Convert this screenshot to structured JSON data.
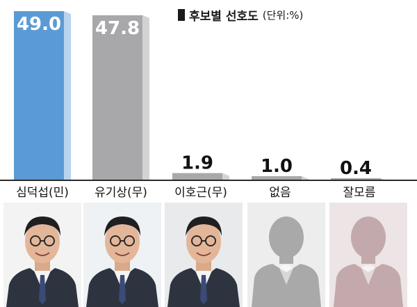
{
  "chart_data": {
    "type": "bar",
    "title": "후보별 선호도",
    "unit_label": "(단위:%)",
    "categories": [
      "심덕섭(민)",
      "유기상(무)",
      "이호근(무)",
      "없음",
      "잘모름"
    ],
    "values": [
      49.0,
      47.8,
      1.9,
      1.0,
      0.4
    ],
    "value_labels": [
      "49.0",
      "47.8",
      "1.9",
      "1.0",
      "0.4"
    ],
    "ylim": [
      0,
      49.0
    ],
    "grid": false,
    "legend": "none",
    "colors": [
      "#5b9bd5",
      "#a8a8aa",
      "#a8a8aa",
      "#a8a8aa",
      "#a8a8aa"
    ],
    "side_colors": [
      "#b8d3ee",
      "#d3d3d5",
      "#d3d3d5",
      "#d3d3d5",
      "#d3d3d5"
    ]
  },
  "photos": [
    {
      "icon": "person-photo-icon",
      "kind": "photo",
      "bg": "#f3f3f3"
    },
    {
      "icon": "person-photo-icon",
      "kind": "photo",
      "bg": "#eef2f4"
    },
    {
      "icon": "person-photo-icon",
      "kind": "photo",
      "bg": "#e9eaec"
    },
    {
      "icon": "person-silhouette-icon",
      "kind": "silhouette",
      "bg": "#ededed",
      "fill": "#a9a9a9"
    },
    {
      "icon": "person-silhouette-icon",
      "kind": "silhouette",
      "bg": "#ece4e5",
      "fill": "#c4a9ac"
    }
  ]
}
